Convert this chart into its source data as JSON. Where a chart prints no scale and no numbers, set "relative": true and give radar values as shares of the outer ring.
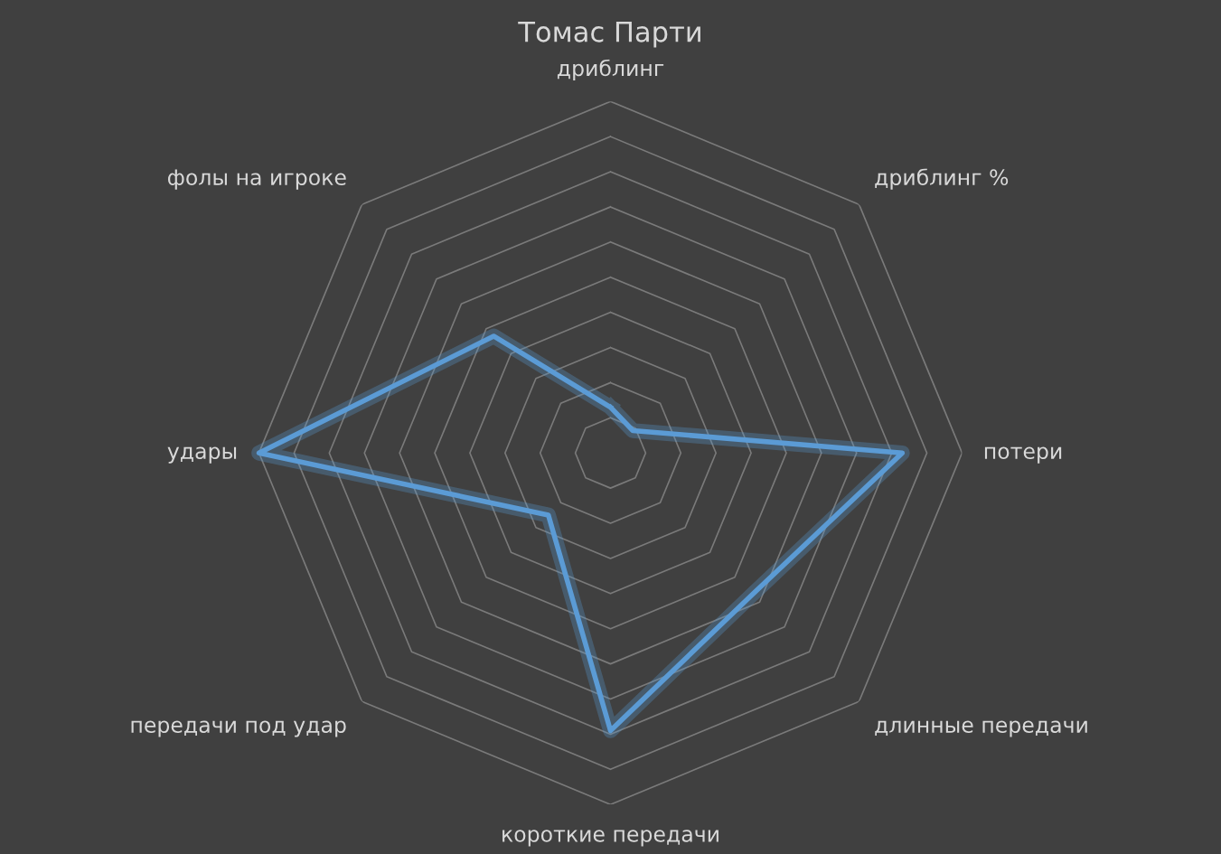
{
  "chart_data": {
    "type": "radar",
    "title": "Томас Парти",
    "relative": true,
    "grid": true,
    "categories": [
      "дриблинг",
      "дриблинг %",
      "потери",
      "длинные передачи",
      "короткие передачи",
      "передачи под удар",
      "удары",
      "фолы на игроке"
    ],
    "series": [
      {
        "color": "#5b9bd5",
        "values": [
          0.13,
          0.09,
          0.83,
          0.57,
          0.79,
          0.25,
          1.0,
          0.47
        ]
      }
    ]
  }
}
